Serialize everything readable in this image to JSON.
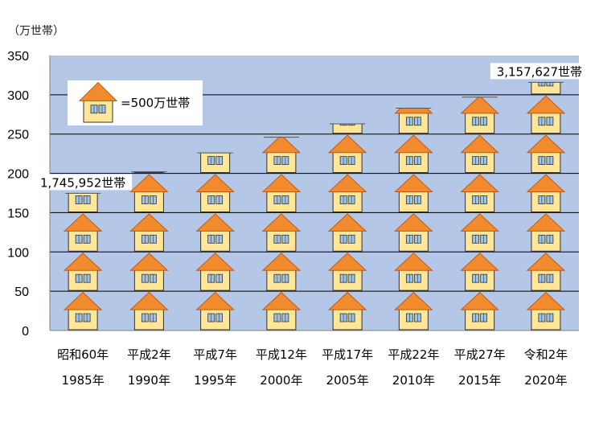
{
  "chart_data": {
    "type": "bar",
    "ylabel": "（万世帯）",
    "ylim": [
      0,
      350
    ],
    "yticks": [
      0,
      50,
      100,
      150,
      200,
      250,
      300,
      350
    ],
    "categories": [
      [
        "昭和60年",
        "1985年"
      ],
      [
        "平成2年",
        "1990年"
      ],
      [
        "平成7年",
        "1995年"
      ],
      [
        "平成12年",
        "2000年"
      ],
      [
        "平成17年",
        "2005年"
      ],
      [
        "平成22年",
        "2010年"
      ],
      [
        "平成27年",
        "2015年"
      ],
      [
        "令和2年",
        "2020年"
      ]
    ],
    "values": [
      174.6,
      202,
      226,
      246,
      263,
      283,
      297,
      315.8
    ],
    "annotations": [
      {
        "category_index": 0,
        "text": "1,745,952世帯"
      },
      {
        "category_index": 7,
        "text": "3,157,627世帯"
      }
    ],
    "legend": {
      "text": "=500万世帯",
      "position": "top-left"
    },
    "grid": true,
    "colors": {
      "plot_bg": "#b4c7e7",
      "roof": "#f28a2e",
      "roof_outline": "#c05a10",
      "wall": "#ffe699",
      "wall_outline": "#333333",
      "window": "#9dc3e6"
    }
  }
}
